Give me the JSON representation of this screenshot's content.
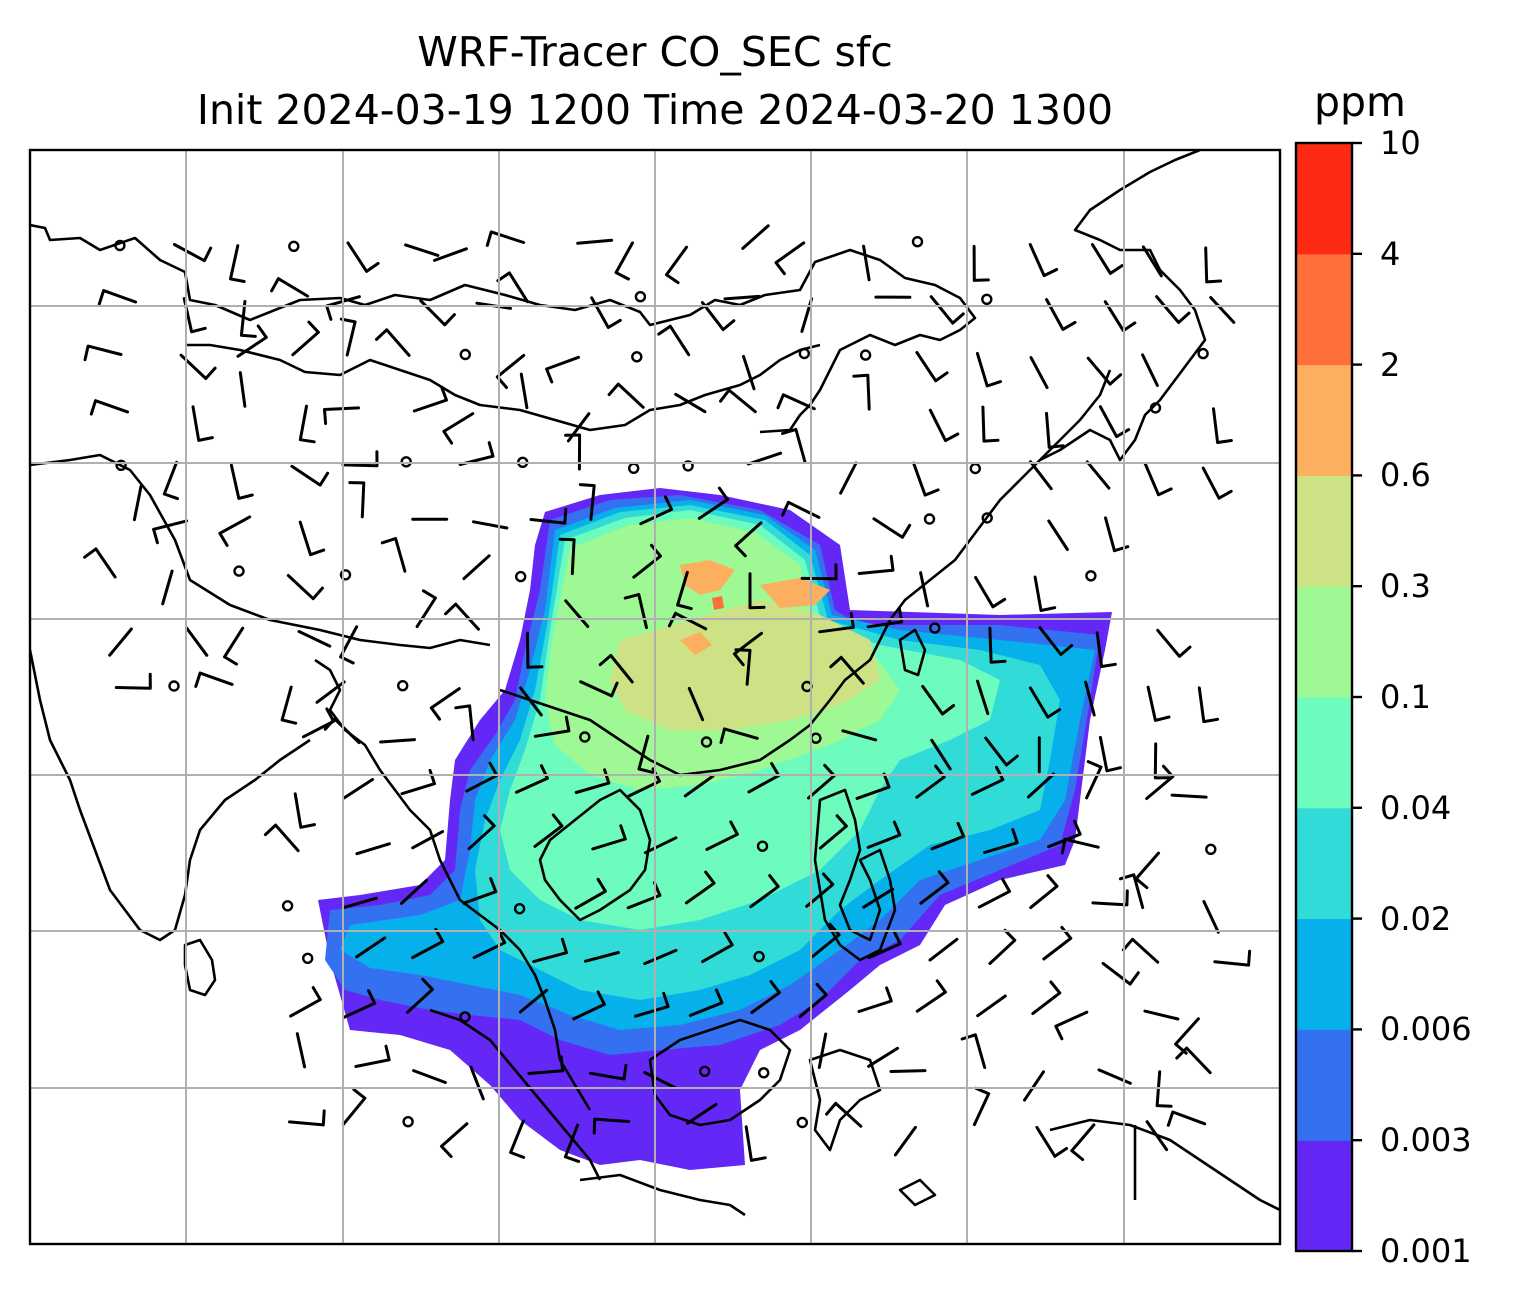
{
  "title": {
    "line1": "WRF-Tracer CO_SEC sfc",
    "line2": "Init 2024-03-19 1200 Time 2024-03-20 1300"
  },
  "colorbar": {
    "unit": "ppm",
    "ticks": [
      "0.001",
      "0.003",
      "0.006",
      "0.02",
      "0.04",
      "0.1",
      "0.3",
      "0.6",
      "2",
      "4",
      "10"
    ],
    "colors": [
      "#6328f5",
      "#3471f0",
      "#06b0ea",
      "#31dcd8",
      "#6dfcbe",
      "#9ef893",
      "#cde285",
      "#fcaf5e",
      "#fe6f3a",
      "#fe2a13"
    ]
  },
  "map": {
    "gridlines": true,
    "field_colors": {
      "outer": "#6328f5",
      "low": "#3471f0",
      "mid": "#06b0ea",
      "mid2": "#31dcd8",
      "mid3": "#6dfcbe",
      "high": "#9ef893",
      "higher": "#cde285",
      "peak": "#fcaf5e",
      "hotspot": "#fe6f3a"
    },
    "coastline_color": "#000000",
    "grid_color": "#b0b0b0",
    "barb_icon": "wind-barb-icon",
    "calm_icon": "calm-circle-icon"
  }
}
